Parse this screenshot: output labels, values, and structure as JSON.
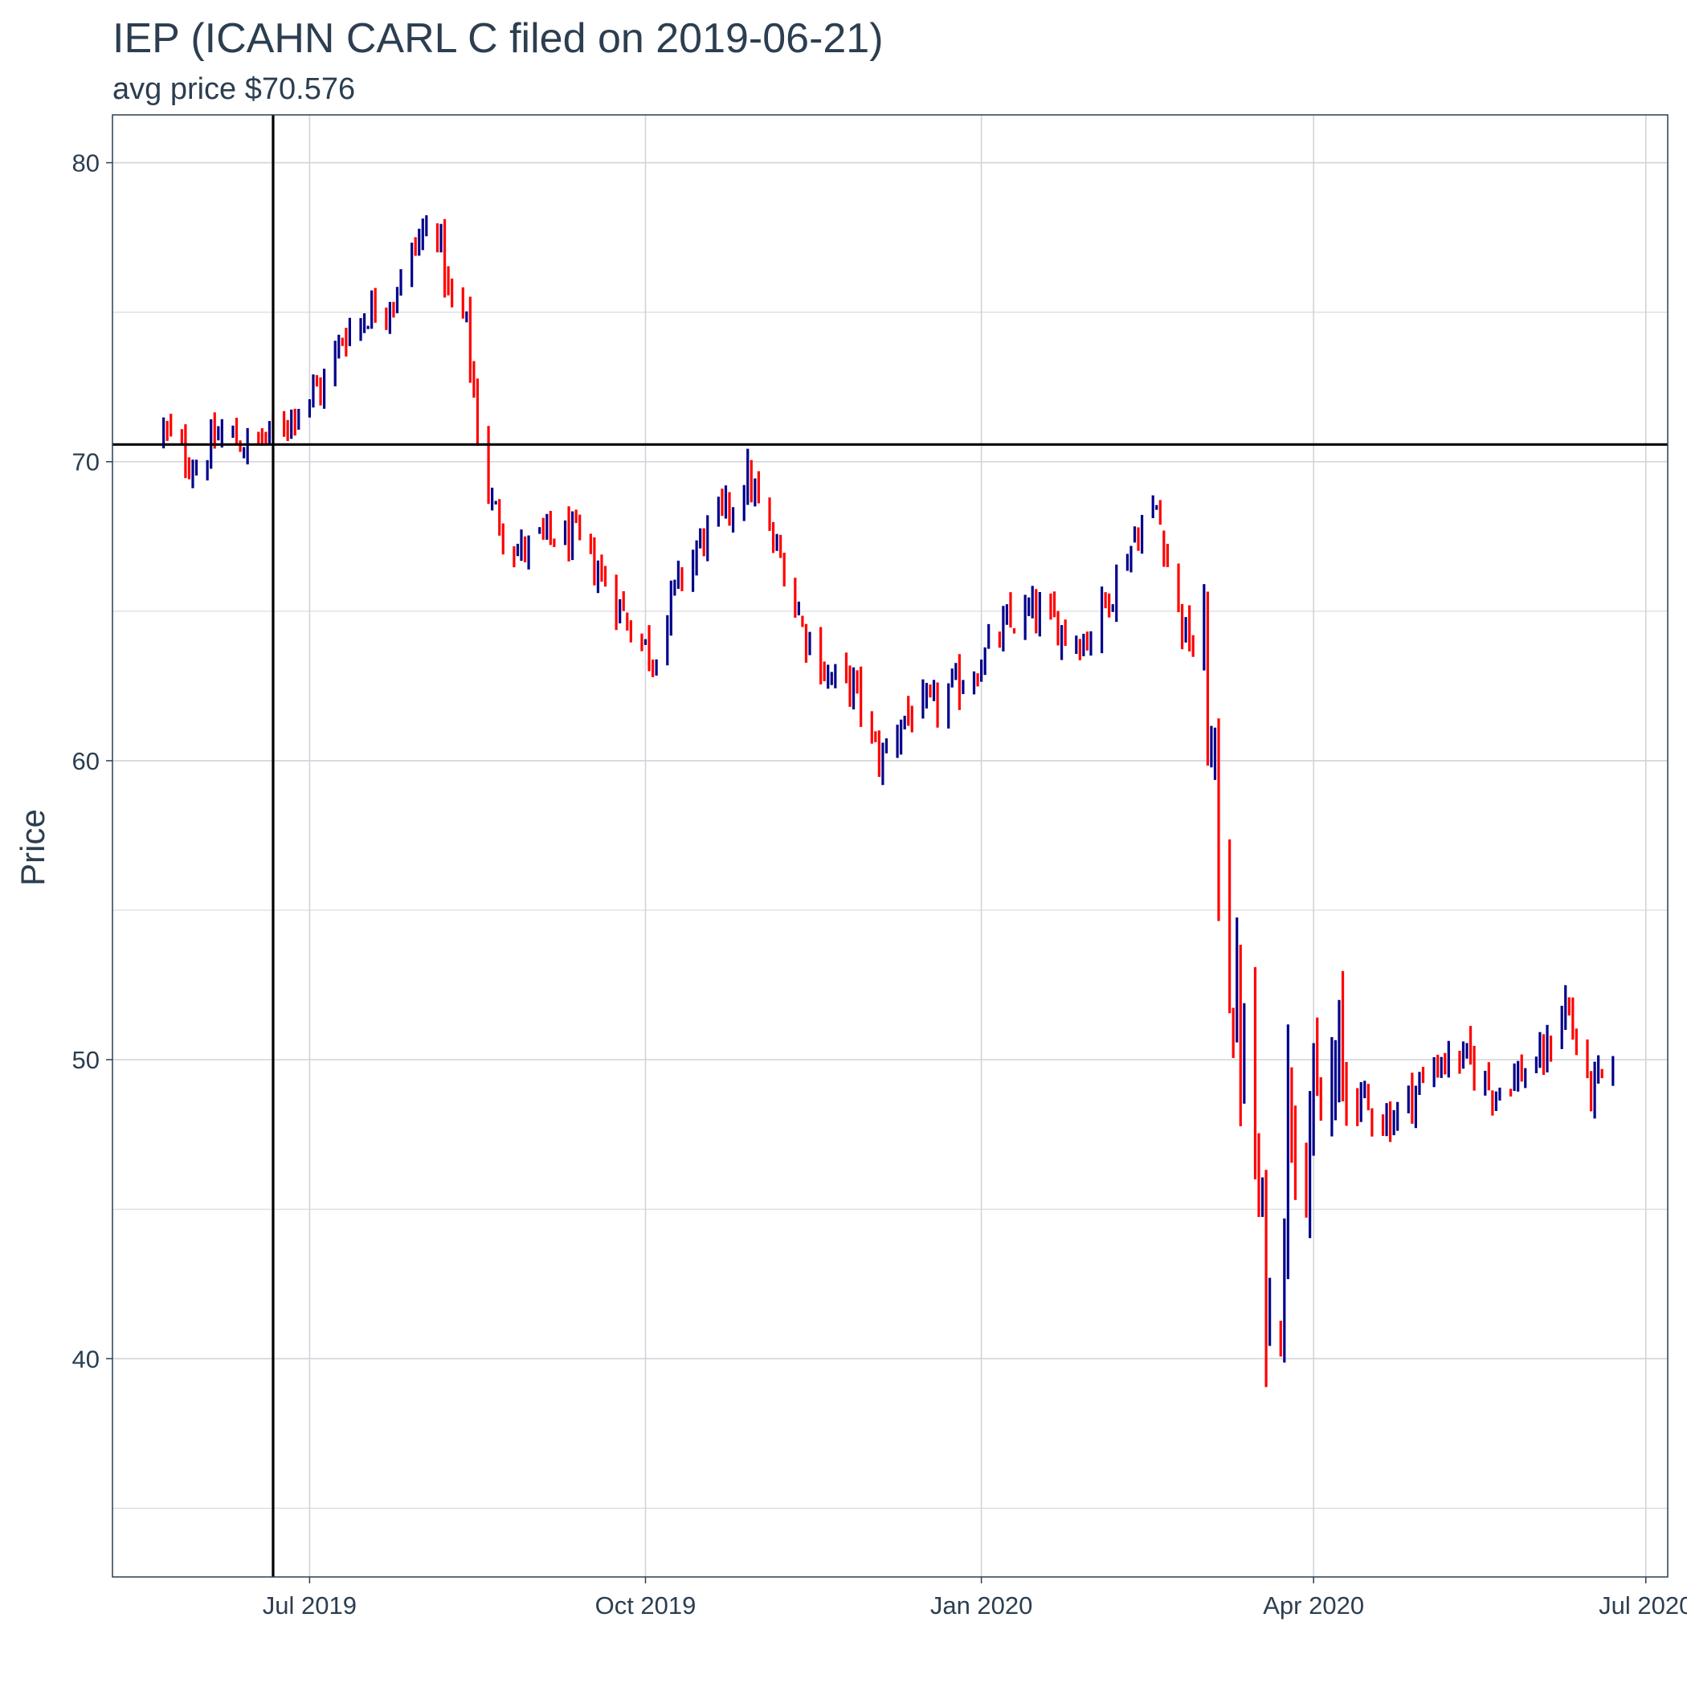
{
  "chart_data": {
    "type": "ohlc",
    "title": "IEP (ICAHN CARL C filed on 2019-06-21)",
    "subtitle": "avg price $70.576",
    "xlabel": "",
    "ylabel": "Price",
    "ylim": [
      32.7,
      81.6
    ],
    "xlim": [
      "2019-05-08",
      "2020-07-07"
    ],
    "y_ticks": [
      40,
      50,
      60,
      70,
      80
    ],
    "x_ticks": [
      {
        "date": "2019-07-01",
        "label": "Jul 2019"
      },
      {
        "date": "2019-10-01",
        "label": "Oct 2019"
      },
      {
        "date": "2020-01-01",
        "label": "Jan 2020"
      },
      {
        "date": "2020-04-01",
        "label": "Apr 2020"
      },
      {
        "date": "2020-07-01",
        "label": "Jul 2020"
      }
    ],
    "grid": true,
    "reference_lines": {
      "filing_date": "2019-06-21",
      "avg_price": 70.576
    },
    "colors": {
      "up": "#00008b",
      "down": "#ff0000",
      "reference": "#000000",
      "grid": "#d0d3d8",
      "text": "#2c3e50",
      "frame": "#2c3e50"
    },
    "series": [
      {
        "name": "",
        "anchors": [
          [
            "2019-05-22",
            71.0
          ],
          [
            "2019-05-31",
            69.8
          ],
          [
            "2019-06-07",
            71.0
          ],
          [
            "2019-06-14",
            70.5
          ],
          [
            "2019-06-21",
            70.9
          ],
          [
            "2019-06-28",
            71.9
          ],
          [
            "2019-07-05",
            72.6
          ],
          [
            "2019-07-10",
            74.2
          ],
          [
            "2019-07-17",
            75.0
          ],
          [
            "2019-07-24",
            75.5
          ],
          [
            "2019-07-31",
            77.5
          ],
          [
            "2019-08-05",
            78.0
          ],
          [
            "2019-08-08",
            75.5
          ],
          [
            "2019-08-13",
            74.5
          ],
          [
            "2019-08-16",
            71.0
          ],
          [
            "2019-08-20",
            68.5
          ],
          [
            "2019-08-27",
            67.0
          ],
          [
            "2019-09-05",
            67.5
          ],
          [
            "2019-09-12",
            67.4
          ],
          [
            "2019-09-20",
            66.0
          ],
          [
            "2019-09-27",
            64.5
          ],
          [
            "2019-10-03",
            63.5
          ],
          [
            "2019-10-10",
            66.0
          ],
          [
            "2019-10-17",
            67.5
          ],
          [
            "2019-10-24",
            68.5
          ],
          [
            "2019-10-29",
            69.5
          ],
          [
            "2019-11-04",
            67.5
          ],
          [
            "2019-11-08",
            66.5
          ],
          [
            "2019-11-13",
            64.5
          ],
          [
            "2019-11-20",
            62.8
          ],
          [
            "2019-11-27",
            62.5
          ],
          [
            "2019-12-04",
            60.0
          ],
          [
            "2019-12-11",
            61.5
          ],
          [
            "2019-12-19",
            61.8
          ],
          [
            "2019-12-30",
            63.0
          ],
          [
            "2020-01-08",
            64.5
          ],
          [
            "2020-01-15",
            65.0
          ],
          [
            "2020-01-22",
            64.5
          ],
          [
            "2020-01-29",
            64.0
          ],
          [
            "2020-02-05",
            65.5
          ],
          [
            "2020-02-12",
            67.5
          ],
          [
            "2020-02-18",
            68.5
          ],
          [
            "2020-02-25",
            64.5
          ],
          [
            "2020-03-02",
            63.0
          ],
          [
            "2020-03-06",
            57.0
          ],
          [
            "2020-03-10",
            52.0
          ],
          [
            "2020-03-13",
            50.0
          ],
          [
            "2020-03-17",
            45.0
          ],
          [
            "2020-03-20",
            41.0
          ],
          [
            "2020-03-23",
            42.5
          ],
          [
            "2020-03-25",
            49.0
          ],
          [
            "2020-04-01",
            47.5
          ],
          [
            "2020-04-08",
            49.5
          ],
          [
            "2020-04-15",
            48.5
          ],
          [
            "2020-04-22",
            48.0
          ],
          [
            "2020-04-29",
            49.0
          ],
          [
            "2020-05-06",
            50.0
          ],
          [
            "2020-05-13",
            50.0
          ],
          [
            "2020-05-20",
            49.0
          ],
          [
            "2020-05-27",
            49.5
          ],
          [
            "2020-06-03",
            50.0
          ],
          [
            "2020-06-09",
            52.0
          ],
          [
            "2020-06-15",
            49.0
          ],
          [
            "2020-06-22",
            49.5
          ]
        ]
      }
    ]
  }
}
